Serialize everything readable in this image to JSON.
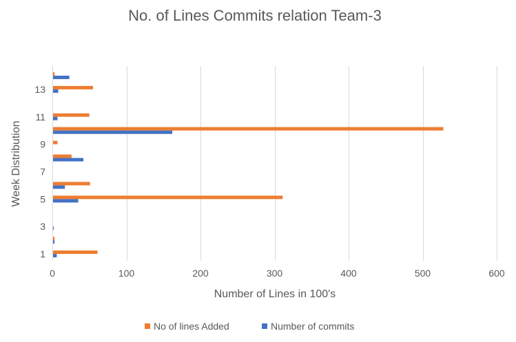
{
  "chart_data": {
    "type": "bar",
    "orientation": "horizontal",
    "title": "No. of Lines Commits relation Team-3",
    "xlabel": "Number of Lines in 100's",
    "ylabel": "Week Distribution",
    "xlim": [
      0,
      600
    ],
    "x_ticks": [
      0,
      100,
      200,
      300,
      400,
      500,
      600
    ],
    "categories": [
      "1",
      "2",
      "3",
      "4",
      "5",
      "6",
      "7",
      "8",
      "9",
      "10",
      "11",
      "12",
      "13",
      "14"
    ],
    "y_tick_labels": [
      "1",
      "",
      "3",
      "",
      "5",
      "",
      "7",
      "",
      "9",
      "",
      "11",
      "",
      "13",
      ""
    ],
    "series": [
      {
        "name": "No of lines Added",
        "color": "#ED7D31",
        "values": [
          60,
          2,
          0,
          0,
          310,
          50,
          0,
          25,
          6,
          527,
          49,
          0,
          54,
          2
        ]
      },
      {
        "name": "Number of commits",
        "color": "#4472C4",
        "values": [
          5,
          2,
          1,
          0,
          34,
          16,
          0,
          41,
          0,
          161,
          6,
          0,
          7,
          22
        ]
      }
    ],
    "grid": "vertical",
    "legend_position": "bottom"
  }
}
